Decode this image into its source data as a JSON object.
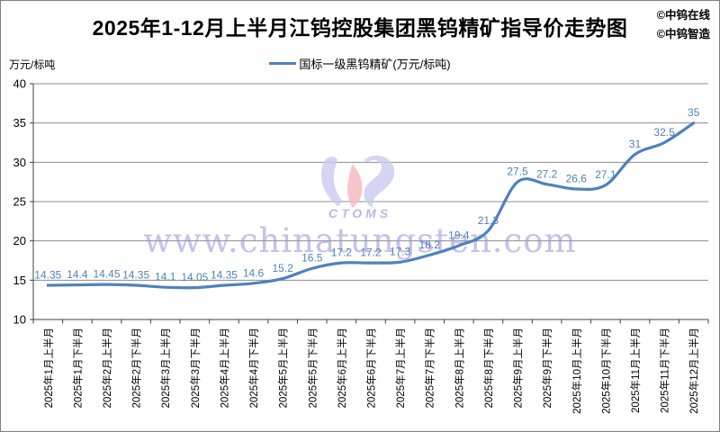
{
  "header": {
    "title": "2025年1-12月上半月江钨控股集团黑钨精矿指导价走势图",
    "credits": [
      "©中钨在线",
      "©中钨智造"
    ]
  },
  "legend": {
    "label": "国标一级黑钨精矿(万元/标吨)",
    "line_color": "#4f81bd"
  },
  "watermark": {
    "url_text": "www.chinatungsten.com",
    "logo_text": "CTOMS"
  },
  "chart_data": {
    "type": "line",
    "title": "2025年1-12月上半月江钨控股集团黑钨精矿指导价走势图",
    "xlabel": "",
    "ylabel": "万元/标吨",
    "ylim": [
      10,
      40
    ],
    "ytick_step": 5,
    "grid": true,
    "legend_position": "top",
    "categories": [
      "2025年1月上半月",
      "2025年1月下半月",
      "2025年2月上半月",
      "2025年2月下半月",
      "2025年3月上半月",
      "2025年3月下半月",
      "2025年4月上半月",
      "2025年4月下半月",
      "2025年5月上半月",
      "2025年5月下半月",
      "2025年6月上半月",
      "2025年6月下半月",
      "2025年7月上半月",
      "2025年7月下半月",
      "2025年8月上半月",
      "2025年8月下半月",
      "2025年9月上半月",
      "2025年9月下半月",
      "2025年10月上半月",
      "2025年10月下半月",
      "2025年11月上半月",
      "2025年11月下半月",
      "2025年12月上半月"
    ],
    "series": [
      {
        "name": "国标一级黑钨精矿(万元/标吨)",
        "color": "#4f81bd",
        "values": [
          14.35,
          14.4,
          14.45,
          14.35,
          14.1,
          14.05,
          14.35,
          14.6,
          15.2,
          16.5,
          17.2,
          17.2,
          17.3,
          18.2,
          19.4,
          21.3,
          27.5,
          27.2,
          26.6,
          27.1,
          31,
          32.5,
          35
        ]
      }
    ]
  }
}
